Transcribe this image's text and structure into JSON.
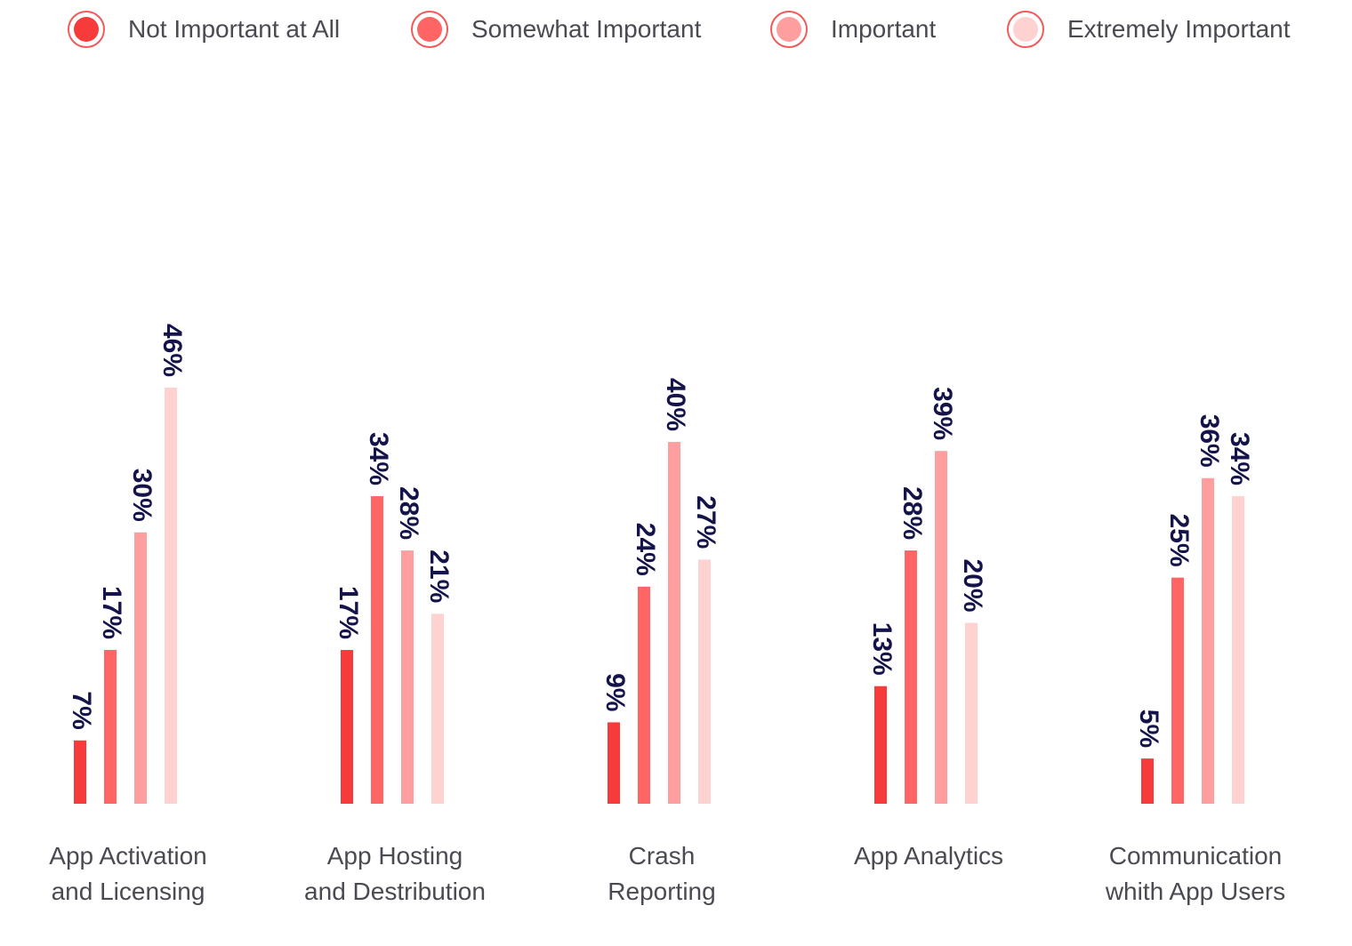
{
  "chart_data": {
    "type": "bar",
    "categories": [
      [
        "App Activation",
        "and Licensing"
      ],
      [
        "App Hosting",
        "and Destribution"
      ],
      [
        "Crash",
        "Reporting"
      ],
      [
        "App Analytics"
      ],
      [
        "Communication",
        "whith App Users"
      ]
    ],
    "series": [
      {
        "name": "Not Important at All",
        "color": "#f73b3b",
        "values": [
          7,
          17,
          9,
          13,
          5
        ],
        "labels": [
          "7%",
          "17%",
          "9%",
          "13%",
          "5%"
        ]
      },
      {
        "name": "Somewhat Important",
        "color": "#ff6565",
        "values": [
          17,
          34,
          24,
          28,
          25
        ],
        "labels": [
          "17%",
          "34%",
          "24%",
          "28%",
          "25%"
        ]
      },
      {
        "name": "Important",
        "color": "#ff9e9e",
        "values": [
          30,
          28,
          40,
          39,
          36
        ],
        "labels": [
          "30%",
          "28%",
          "40%",
          "39%",
          "36%"
        ]
      },
      {
        "name": "Extremely Important",
        "color": "#ffd2d2",
        "values": [
          46,
          21,
          27,
          20,
          34
        ],
        "labels": [
          "46%",
          "21%",
          "27%",
          "20%",
          "34%"
        ]
      }
    ],
    "ylim": [
      0,
      46
    ],
    "legend_position": "top",
    "grid": false
  }
}
